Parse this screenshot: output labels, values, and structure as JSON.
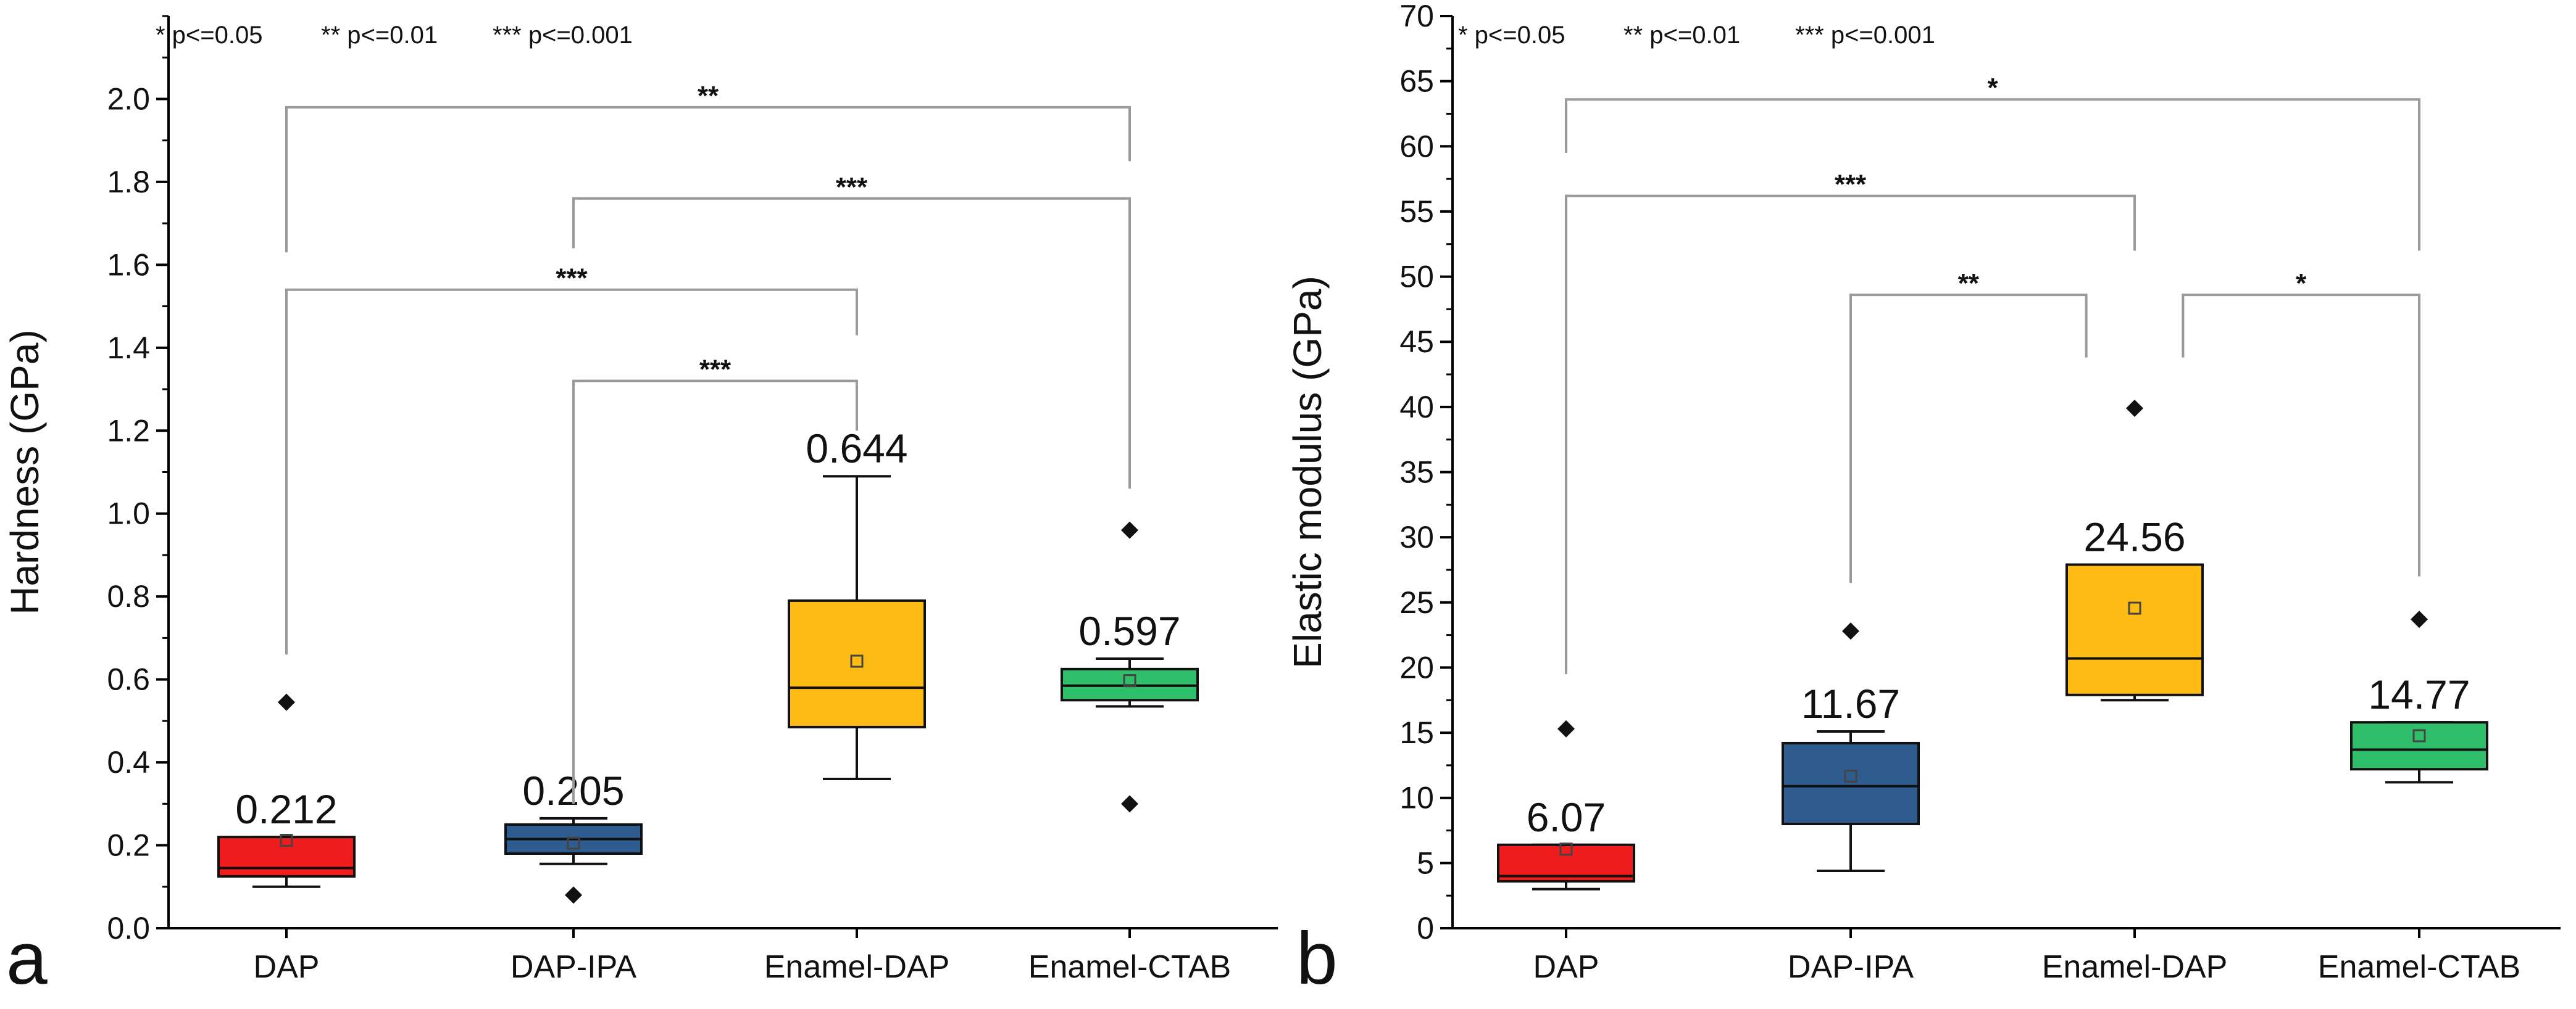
{
  "chart_data": [
    {
      "type": "box",
      "panel_label": "a",
      "ylabel": "Hardness (GPa)",
      "xlabel": "",
      "ylim": [
        0.0,
        2.2
      ],
      "y_ticks": [
        0.0,
        0.2,
        0.4,
        0.6,
        0.8,
        1.0,
        1.2,
        1.4,
        1.6,
        1.8,
        2.0
      ],
      "y_tick_labels": [
        "0.0",
        "0.2",
        "0.4",
        "0.6",
        "0.8",
        "1.0",
        "1.2",
        "1.4",
        "1.6",
        "1.8",
        "2.0"
      ],
      "y_minor_step": 0.1,
      "significance_legend": [
        "* p<=0.05",
        "** p<=0.01",
        "*** p<=0.001"
      ],
      "categories": [
        "DAP",
        "DAP-IPA",
        "Enamel-DAP",
        "Enamel-CTAB"
      ],
      "colors": [
        "#ee1c1c",
        "#2e5c8e",
        "#fdbb13",
        "#2fbf6b"
      ],
      "boxes": [
        {
          "whisker_low": 0.1,
          "q1": 0.125,
          "median": 0.145,
          "q3": 0.22,
          "whisker_high": 0.22,
          "mean": 0.212,
          "mean_label": "0.212",
          "outliers": [
            0.545
          ]
        },
        {
          "whisker_low": 0.155,
          "q1": 0.18,
          "median": 0.215,
          "q3": 0.25,
          "whisker_high": 0.265,
          "mean": 0.205,
          "mean_label": "0.205",
          "outliers": [
            0.08
          ]
        },
        {
          "whisker_low": 0.36,
          "q1": 0.485,
          "median": 0.58,
          "q3": 0.79,
          "whisker_high": 1.09,
          "mean": 0.644,
          "mean_label": "0.644",
          "outliers": []
        },
        {
          "whisker_low": 0.535,
          "q1": 0.55,
          "median": 0.585,
          "q3": 0.625,
          "whisker_high": 0.65,
          "mean": 0.597,
          "mean_label": "0.597",
          "outliers": [
            0.96,
            0.3
          ]
        }
      ],
      "brackets": [
        {
          "from": 0,
          "to": 3,
          "level": 1.98,
          "left_start": 1.63,
          "right_start": 1.85,
          "label": "**"
        },
        {
          "from": 1,
          "to": 3,
          "level": 1.76,
          "left_start": 1.64,
          "right_start": 1.06,
          "label": "***"
        },
        {
          "from": 0,
          "to": 2,
          "level": 1.54,
          "left_start": 0.66,
          "right_start": 1.43,
          "label": "***"
        },
        {
          "from": 1,
          "to": 2,
          "level": 1.32,
          "left_start": 0.3,
          "right_start": 1.2,
          "label": "***"
        }
      ]
    },
    {
      "type": "box",
      "panel_label": "b",
      "ylabel": "Elastic modulus (GPa)",
      "xlabel": "",
      "ylim": [
        0,
        70
      ],
      "y_ticks": [
        0,
        5,
        10,
        15,
        20,
        25,
        30,
        35,
        40,
        45,
        50,
        55,
        60,
        65,
        70
      ],
      "y_tick_labels": [
        "0",
        "5",
        "10",
        "15",
        "20",
        "25",
        "30",
        "35",
        "40",
        "45",
        "50",
        "55",
        "60",
        "65",
        "70"
      ],
      "y_minor_step": 2.5,
      "significance_legend": [
        "* p<=0.05",
        "** p<=0.01",
        "*** p<=0.001"
      ],
      "categories": [
        "DAP",
        "DAP-IPA",
        "Enamel-DAP",
        "Enamel-CTAB"
      ],
      "colors": [
        "#ee1c1c",
        "#2e5c8e",
        "#fdbb13",
        "#2fbf6b"
      ],
      "boxes": [
        {
          "whisker_low": 3.0,
          "q1": 3.6,
          "median": 4.0,
          "q3": 6.4,
          "whisker_high": 6.4,
          "mean": 6.07,
          "mean_label": "6.07",
          "outliers": [
            15.3
          ]
        },
        {
          "whisker_low": 4.4,
          "q1": 8.0,
          "median": 10.9,
          "q3": 14.2,
          "whisker_high": 15.1,
          "mean": 11.67,
          "mean_label": "11.67",
          "outliers": [
            22.8
          ]
        },
        {
          "whisker_low": 17.5,
          "q1": 17.9,
          "median": 20.7,
          "q3": 27.9,
          "whisker_high": 27.9,
          "mean": 24.56,
          "mean_label": "24.56",
          "outliers": [
            39.9
          ]
        },
        {
          "whisker_low": 11.2,
          "q1": 12.2,
          "median": 13.7,
          "q3": 15.8,
          "whisker_high": 15.8,
          "mean": 14.77,
          "mean_label": "14.77",
          "outliers": [
            23.7
          ]
        }
      ],
      "brackets": [
        {
          "from": 0,
          "to": 3,
          "level": 63.6,
          "left_start": 59.5,
          "right_start": 52.0,
          "label": "*"
        },
        {
          "from": 0,
          "to": 2,
          "level": 56.2,
          "left_start": 19.5,
          "right_start": 52.0,
          "label": "***"
        },
        {
          "from": 1,
          "to": 2,
          "level": 48.6,
          "left_start": 26.5,
          "right_start": 43.8,
          "label": "**",
          "right_offset": -0.17
        },
        {
          "from": 2,
          "to": 3,
          "level": 48.6,
          "left_start": 43.8,
          "right_start": 27.0,
          "label": "*",
          "left_offset": 0.17
        }
      ]
    }
  ]
}
